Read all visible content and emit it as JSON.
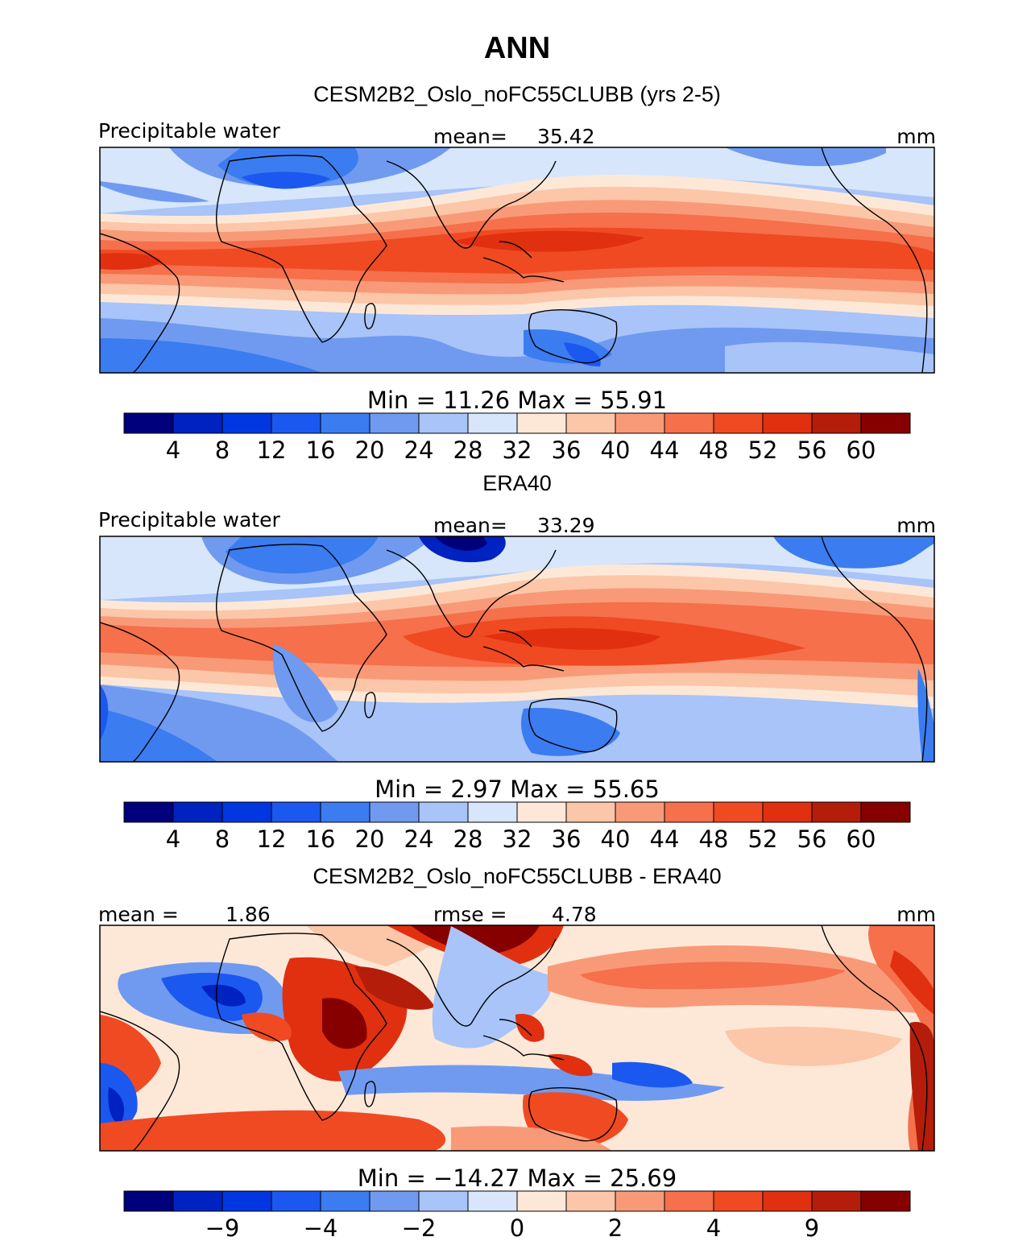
{
  "figure": {
    "season": "ANN"
  },
  "palette": [
    "#00007d",
    "#0022c0",
    "#0037e0",
    "#1b58f0",
    "#3b7cf0",
    "#6f9af0",
    "#a8c4f8",
    "#d7e6fa",
    "#fde8d8",
    "#fcc6a8",
    "#f89a78",
    "#f5704b",
    "#f04a23",
    "#e03010",
    "#b51d0b",
    "#860000"
  ],
  "chart_data": [
    {
      "type": "heatmap",
      "name": "model",
      "title": "CESM2B2_Oslo_noFC55CLUBB (yrs 2-5)",
      "variable": "Precipitable water",
      "mean_label": "mean=",
      "mean_value": "35.42",
      "units": "mm",
      "minmax_label": "Min =   11.26 Max =   55.91",
      "min": 11.26,
      "max": 55.91,
      "mean": 35.42,
      "colorbar_levels": [
        "4",
        "8",
        "12",
        "16",
        "20",
        "24",
        "28",
        "32",
        "36",
        "40",
        "44",
        "48",
        "52",
        "56",
        "60"
      ]
    },
    {
      "type": "heatmap",
      "name": "obs",
      "title": "ERA40",
      "variable": "Precipitable water",
      "mean_label": "mean=",
      "mean_value": "33.29",
      "units": "mm",
      "minmax_label": "Min =    2.97 Max =   55.65",
      "min": 2.97,
      "max": 55.65,
      "mean": 33.29,
      "colorbar_levels": [
        "4",
        "8",
        "12",
        "16",
        "20",
        "24",
        "28",
        "32",
        "36",
        "40",
        "44",
        "48",
        "52",
        "56",
        "60"
      ]
    },
    {
      "type": "heatmap",
      "name": "diff",
      "title": "CESM2B2_Oslo_noFC55CLUBB - ERA40",
      "mean_label": "mean =",
      "mean_value": "1.86",
      "rmse_label": "rmse =",
      "rmse_value": "4.78",
      "units": "mm",
      "minmax_label": "Min = −14.27 Max =   25.69",
      "min": -14.27,
      "max": 25.69,
      "mean": 1.86,
      "rmse": 4.78,
      "colorbar_levels": [
        "−9",
        "−4",
        "−2",
        "0",
        "2",
        "4",
        "9"
      ]
    }
  ]
}
